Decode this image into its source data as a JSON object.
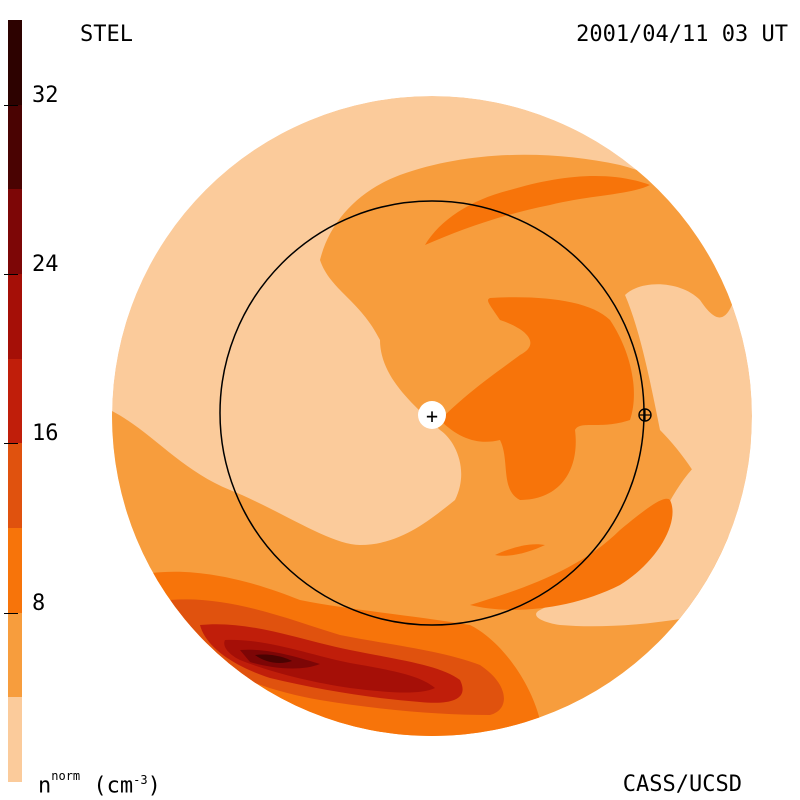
{
  "header": {
    "instrument": "STEL",
    "timestamp": "2001/04/11 03 UT"
  },
  "footer": {
    "quantity": "n",
    "quantity_sup": "norm",
    "unit_prefix": "(cm",
    "unit_exp": "-3",
    "unit_suffix": ")",
    "credit": "CASS/UCSD"
  },
  "colorbar": {
    "ticks": [
      {
        "value": 32,
        "label": "32"
      },
      {
        "value": 24,
        "label": "24"
      },
      {
        "value": 16,
        "label": "16"
      },
      {
        "value": 8,
        "label": "8"
      }
    ],
    "range": [
      0,
      36
    ],
    "levels": [
      {
        "from": 0,
        "to": 4,
        "color": "#fbcb9b"
      },
      {
        "from": 4,
        "to": 8,
        "color": "#f79d3d"
      },
      {
        "from": 8,
        "to": 12,
        "color": "#f7740a"
      },
      {
        "from": 12,
        "to": 16,
        "color": "#e0520e"
      },
      {
        "from": 16,
        "to": 20,
        "color": "#c01e0a"
      },
      {
        "from": 20,
        "to": 24,
        "color": "#a50f07"
      },
      {
        "from": 24,
        "to": 28,
        "color": "#7d0606"
      },
      {
        "from": 28,
        "to": 32,
        "color": "#4a0302"
      },
      {
        "from": 32,
        "to": 36,
        "color": "#2d0200"
      }
    ]
  },
  "map": {
    "background_color": "#fbcb9b",
    "orbit_color": "#000000",
    "sun_marker": "+",
    "earth_marker": "⊕"
  }
}
